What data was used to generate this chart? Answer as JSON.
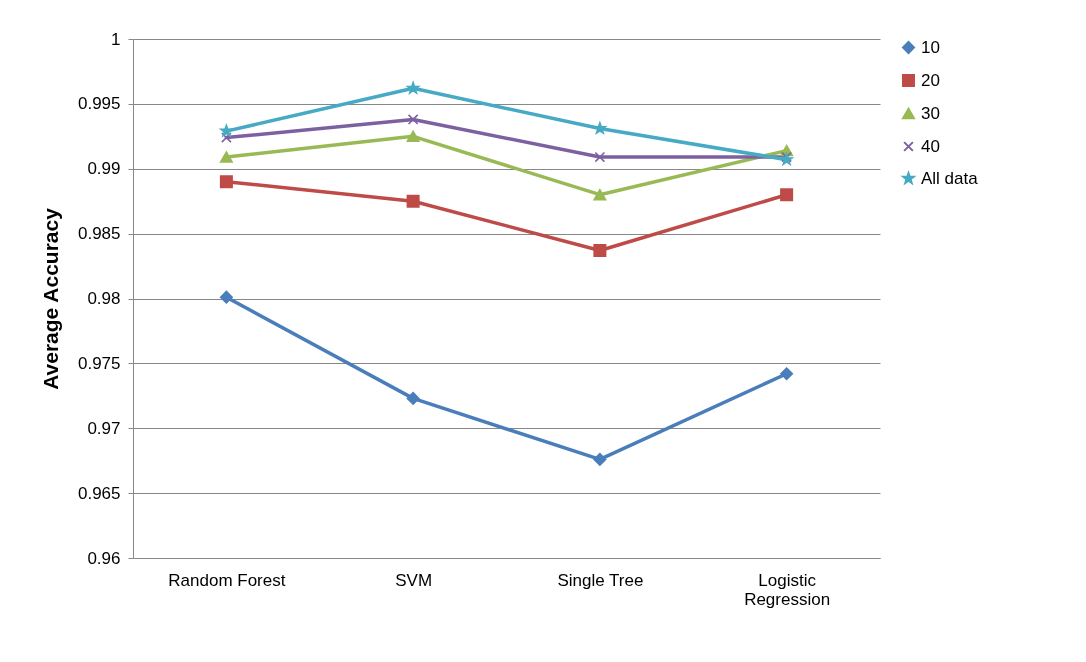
{
  "chart_data": {
    "type": "line",
    "ylabel": "Average Accuracy",
    "categories": [
      "Random Forest",
      "SVM",
      "Single Tree",
      "Logistic Regression"
    ],
    "series": [
      {
        "name": "10",
        "color": "#4a7ebb",
        "marker": "diamond",
        "values": [
          0.9801,
          0.9723,
          0.9676,
          0.9742
        ]
      },
      {
        "name": "20",
        "color": "#be4b48",
        "marker": "square",
        "values": [
          0.989,
          0.9875,
          0.9837,
          0.988
        ]
      },
      {
        "name": "30",
        "color": "#98b954",
        "marker": "triangle",
        "values": [
          0.9909,
          0.9925,
          0.988,
          0.9914
        ]
      },
      {
        "name": "40",
        "color": "#7d60a0",
        "marker": "cross",
        "values": [
          0.9924,
          0.9938,
          0.9909,
          0.9909
        ]
      },
      {
        "name": "All data",
        "color": "#46aac5",
        "marker": "star",
        "values": [
          0.9929,
          0.9962,
          0.9931,
          0.9907
        ]
      }
    ],
    "ylim": [
      0.96,
      1
    ],
    "yticks": [
      0.96,
      0.965,
      0.97,
      0.975,
      0.98,
      0.985,
      0.99,
      0.995,
      1
    ],
    "grid": "y",
    "legend": "right"
  }
}
